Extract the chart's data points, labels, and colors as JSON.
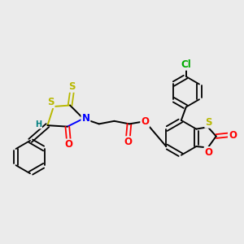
{
  "background_color": "#ebebeb",
  "bond_color": "#000000",
  "atom_colors": {
    "S": "#b8b800",
    "N": "#0000ff",
    "O": "#ff0000",
    "Cl": "#00aa00",
    "H": "#008080",
    "C": "#000000"
  },
  "figsize": [
    3.0,
    3.0
  ],
  "dpi": 100
}
